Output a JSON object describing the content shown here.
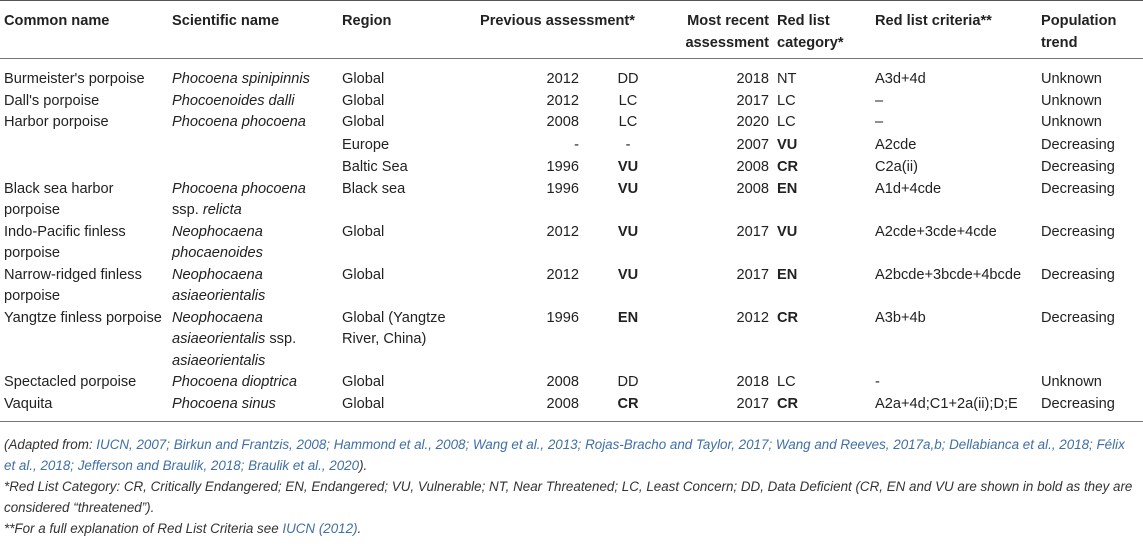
{
  "headers": {
    "common": "Common name",
    "scientific": "Scientific name",
    "region": "Region",
    "previous": "Previous assessment*",
    "recent": "Most recent assessment",
    "category": "Red list category*",
    "criteria": "Red list criteria**",
    "trend": "Population trend"
  },
  "rows": [
    {
      "common": "Burmeister's porpoise",
      "sci": "Phocoena spinipinnis",
      "sci2": "",
      "region": "Global",
      "prev_year": "2012",
      "prev_cat": "DD",
      "recent": "2018",
      "cat": "NT",
      "criteria": "A3d+4d",
      "trend": "Unknown"
    },
    {
      "common": "Dall's porpoise",
      "sci": "Phocoenoides dalli",
      "sci2": "",
      "region": "Global",
      "prev_year": "2012",
      "prev_cat": "LC",
      "recent": "2017",
      "cat": "LC",
      "criteria": "–",
      "trend": "Unknown"
    },
    {
      "common": "Harbor porpoise",
      "sci": "Phocoena phocoena",
      "sci2": "",
      "region": "Global",
      "prev_year": "2008",
      "prev_cat": "LC",
      "recent": "2020",
      "cat": "LC",
      "criteria": "–",
      "trend": "Unknown"
    },
    {
      "common": "",
      "sci": "",
      "sci2": "",
      "region": "Europe",
      "prev_year": "-",
      "prev_cat": "-",
      "recent": "2007",
      "cat": "VU",
      "criteria": "A2cde",
      "trend": "Decreasing"
    },
    {
      "common": "",
      "sci": "",
      "sci2": "",
      "region": "Baltic Sea",
      "prev_year": "1996",
      "prev_cat": "VU",
      "recent": "2008",
      "cat": "CR",
      "criteria": "C2a(ii)",
      "trend": "Decreasing"
    },
    {
      "common": "Black sea harbor porpoise",
      "sci": "Phocoena phocoena",
      "sci2": "ssp. relicta",
      "region": "Black sea",
      "prev_year": "1996",
      "prev_cat": "VU",
      "recent": "2008",
      "cat": "EN",
      "criteria": "A1d+4cde",
      "trend": "Decreasing"
    },
    {
      "common": "Indo-Pacific finless porpoise",
      "sci": "Neophocaena phocaenoides",
      "sci2": "",
      "region": "Global",
      "prev_year": "2012",
      "prev_cat": "VU",
      "recent": "2017",
      "cat": "VU",
      "criteria": "A2cde+3cde+4cde",
      "trend": "Decreasing"
    },
    {
      "common": "Narrow-ridged finless porpoise",
      "sci": "Neophocaena asiaeorientalis",
      "sci2": "",
      "region": "Global",
      "prev_year": "2012",
      "prev_cat": "VU",
      "recent": "2017",
      "cat": "EN",
      "criteria": "A2bcde+3bcde+4bcde",
      "trend": "Decreasing"
    },
    {
      "common": "Yangtze finless porpoise",
      "sci": "Neophocaena asiaeorientalis ssp. asiaeorientalis",
      "sci2": "",
      "region": "Global (Yangtze River, China)",
      "prev_year": "1996",
      "prev_cat": "EN",
      "recent": "2012",
      "cat": "CR",
      "criteria": "A3b+4b",
      "trend": "Decreasing"
    },
    {
      "common": "Spectacled porpoise",
      "sci": "Phocoena dioptrica",
      "sci2": "",
      "region": "Global",
      "prev_year": "2008",
      "prev_cat": "DD",
      "recent": "2018",
      "cat": "LC",
      "criteria": "-",
      "trend": "Unknown"
    },
    {
      "common": "Vaquita",
      "sci": "Phocoena sinus",
      "sci2": "",
      "region": "Global",
      "prev_year": "2008",
      "prev_cat": "CR",
      "recent": "2017",
      "cat": "CR",
      "criteria": "A2a+4d;C1+2a(ii);D;E",
      "trend": "Decreasing"
    }
  ],
  "notes": {
    "adapted_prefix": "(Adapted from: ",
    "adapted_refs": "IUCN, 2007; Birkun and Frantzis, 2008; Hammond et al., 2008; Wang et al., 2013; Rojas-Bracho and Taylor, 2017; Wang and Reeves, 2017a,b; Dellabianca et al., 2018; Félix et al., 2018; Jefferson and Braulik, 2018; Braulik et al., 2020",
    "adapted_suffix": ").",
    "category_note": "*Red List Category: CR, Critically Endangered; EN, Endangered; VU, Vulnerable; NT, Near Threatened; LC, Least Concern; DD, Data Deficient (CR, EN and VU are shown in bold as they are considered “threatened”).",
    "criteria_prefix": "**For a full explanation of Red List Criteria see ",
    "criteria_link": "IUCN (2012)",
    "criteria_suffix": "."
  },
  "bold_categories": [
    "CR",
    "EN",
    "VU"
  ]
}
